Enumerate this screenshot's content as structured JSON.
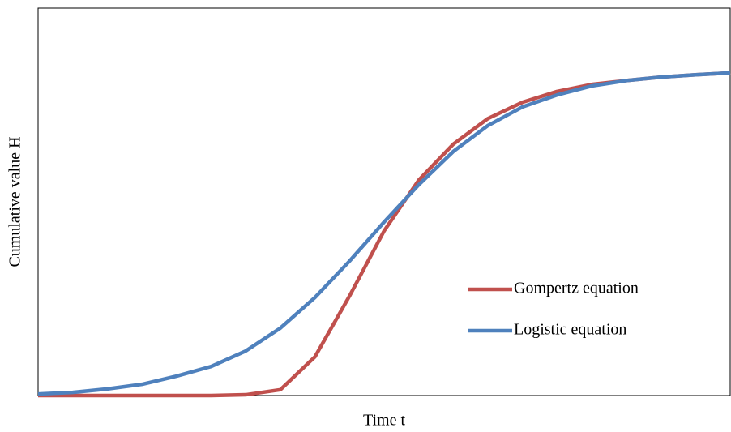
{
  "chart_data": {
    "type": "line",
    "x_label": "Time t",
    "y_label": "Cumulative value H",
    "x": [
      0,
      5,
      10,
      15,
      20,
      25,
      30,
      35,
      40,
      45,
      50,
      55,
      60,
      65,
      70,
      75,
      80,
      85,
      90,
      95,
      100
    ],
    "series": [
      {
        "name": "Gompertz equation",
        "color": "#c0504d",
        "values": [
          0,
          0,
          0,
          0,
          0,
          0,
          0.2,
          1.5,
          10.0,
          25.7,
          42.5,
          55.6,
          64.9,
          71.5,
          75.7,
          78.5,
          80.3,
          81.3,
          82.2,
          82.8,
          83.3
        ]
      },
      {
        "name": "Logistic equation",
        "color": "#4f81bd",
        "values": [
          0.4,
          0.8,
          1.7,
          2.9,
          5.0,
          7.5,
          11.5,
          17.4,
          25.3,
          34.7,
          44.8,
          54.4,
          63.0,
          69.7,
          74.5,
          77.6,
          79.9,
          81.3,
          82.2,
          82.8,
          83.3
        ]
      }
    ],
    "xlim": [
      0,
      100
    ],
    "ylim": [
      0,
      100
    ]
  }
}
